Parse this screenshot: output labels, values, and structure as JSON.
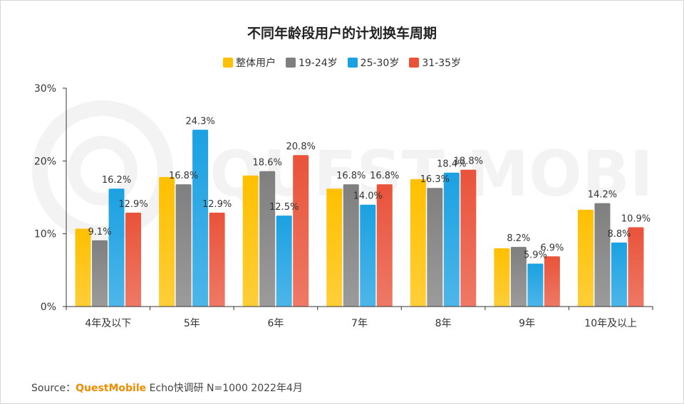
{
  "chart_data": {
    "type": "bar",
    "title": "不同年龄段用户的计划换车周期",
    "categories": [
      "4年及以下",
      "5年",
      "6年",
      "7年",
      "8年",
      "9年",
      "10年及以上"
    ],
    "series": [
      {
        "name": "整体用户",
        "values": [
          10.7,
          17.8,
          18.0,
          16.2,
          17.5,
          8.0,
          13.3
        ],
        "color": "#ffc000",
        "labels": [
          null,
          null,
          null,
          null,
          null,
          null,
          null
        ]
      },
      {
        "name": "19-24岁",
        "values": [
          9.1,
          16.8,
          18.6,
          16.8,
          16.3,
          8.2,
          14.2
        ],
        "color": "#7f7f7f",
        "labels": [
          "9.1%",
          "16.8%",
          "18.6%",
          "16.8%",
          "16.3%",
          "8.2%",
          "14.2%"
        ]
      },
      {
        "name": "25-30岁",
        "values": [
          16.2,
          24.3,
          12.5,
          14.0,
          18.4,
          5.9,
          8.8
        ],
        "color": "#1ba1e2",
        "labels": [
          "16.2%",
          "24.3%",
          "12.5%",
          "14.0%",
          "18.4%",
          "5.9%",
          "8.8%"
        ]
      },
      {
        "name": "31-35岁",
        "values": [
          12.9,
          12.9,
          20.8,
          16.8,
          18.8,
          6.9,
          10.9
        ],
        "color": "#e9533a",
        "labels": [
          "12.9%",
          "12.9%",
          "20.8%",
          "16.8%",
          "18.8%",
          "6.9%",
          "10.9%"
        ]
      }
    ],
    "yticks": [
      "0%",
      "10%",
      "20%",
      "30%"
    ],
    "ylim": [
      0,
      30
    ],
    "legend_position": "top-center",
    "grid": false
  },
  "watermark": "QUEST MOBILE",
  "source": {
    "prefix": "Source：",
    "brand": "QuestMobile",
    "text": " Echo快调研 N=1000 2022年4月"
  }
}
